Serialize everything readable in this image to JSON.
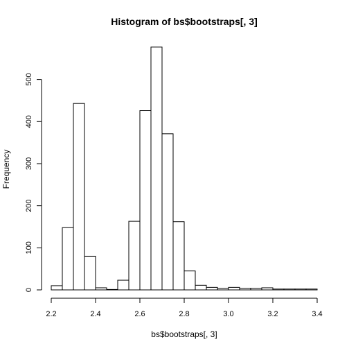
{
  "chart_data": {
    "type": "bar",
    "title": "Histogram of bs$bootstraps[, 3]",
    "xlabel": "bs$bootstraps[, 3]",
    "ylabel": "Frequency",
    "xlim": [
      2.2,
      3.4
    ],
    "ylim": [
      0,
      590
    ],
    "bin_width": 0.05,
    "x_ticks": [
      "2.2",
      "2.4",
      "2.6",
      "2.8",
      "3.0",
      "3.2",
      "3.4"
    ],
    "y_ticks": [
      "0",
      "100",
      "200",
      "300",
      "400",
      "500"
    ],
    "bins": [
      {
        "start": 2.2,
        "end": 2.25,
        "count": 10
      },
      {
        "start": 2.25,
        "end": 2.3,
        "count": 148
      },
      {
        "start": 2.3,
        "end": 2.35,
        "count": 443
      },
      {
        "start": 2.35,
        "end": 2.4,
        "count": 80
      },
      {
        "start": 2.4,
        "end": 2.45,
        "count": 5
      },
      {
        "start": 2.45,
        "end": 2.5,
        "count": 1
      },
      {
        "start": 2.5,
        "end": 2.55,
        "count": 23
      },
      {
        "start": 2.55,
        "end": 2.6,
        "count": 163
      },
      {
        "start": 2.6,
        "end": 2.65,
        "count": 426
      },
      {
        "start": 2.65,
        "end": 2.7,
        "count": 577
      },
      {
        "start": 2.7,
        "end": 2.75,
        "count": 371
      },
      {
        "start": 2.75,
        "end": 2.8,
        "count": 162
      },
      {
        "start": 2.8,
        "end": 2.85,
        "count": 45
      },
      {
        "start": 2.85,
        "end": 2.9,
        "count": 11
      },
      {
        "start": 2.9,
        "end": 2.95,
        "count": 6
      },
      {
        "start": 2.95,
        "end": 3.0,
        "count": 4
      },
      {
        "start": 3.0,
        "end": 3.05,
        "count": 6
      },
      {
        "start": 3.05,
        "end": 3.1,
        "count": 4
      },
      {
        "start": 3.1,
        "end": 3.15,
        "count": 4
      },
      {
        "start": 3.15,
        "end": 3.2,
        "count": 5
      },
      {
        "start": 3.2,
        "end": 3.25,
        "count": 2
      },
      {
        "start": 3.25,
        "end": 3.3,
        "count": 2
      },
      {
        "start": 3.3,
        "end": 3.35,
        "count": 2
      },
      {
        "start": 3.35,
        "end": 3.4,
        "count": 2
      }
    ],
    "grid": false,
    "legend": "none",
    "bar_fill": "#ffffff",
    "bar_stroke": "#000000"
  }
}
